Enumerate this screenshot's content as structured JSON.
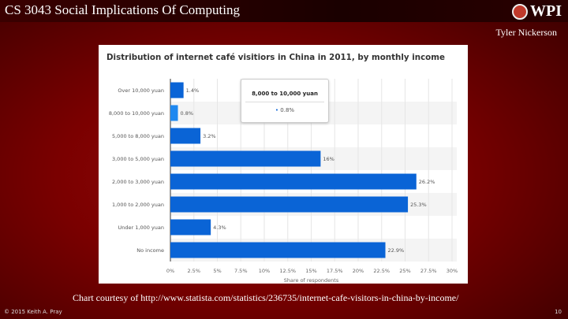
{
  "slide": {
    "title": "CS 3043 Social Implications Of Computing",
    "logo_text": "WPI",
    "author": "Tyler Nickerson",
    "caption": "Chart courtesy of http://www.statista.com/statistics/236735/internet-cafe-visitors-in-china-by-income/",
    "copyright": "© 2015 Keith A. Pray",
    "page_number": "10"
  },
  "tooltip": {
    "title": "8,000 to 10,000 yuan",
    "value": "0.8%",
    "bullet": "•"
  },
  "chart_data": {
    "type": "bar",
    "orientation": "horizontal",
    "title": "Distribution of internet café visitiors in China in 2011, by monthly income",
    "xlabel": "Share of respondents",
    "ylabel": "",
    "categories": [
      "Over 10,000 yuan",
      "8,000 to 10,000 yuan",
      "5,000 to 8,000 yuan",
      "3,000 to 5,000 yuan",
      "2,000 to 3,000 yuan",
      "1,000 to 2,000 yuan",
      "Under 1,000 yuan",
      "No income"
    ],
    "values": [
      1.4,
      0.8,
      3.2,
      16,
      26.2,
      25.3,
      4.3,
      22.9
    ],
    "value_labels": [
      "1.4%",
      "0.8%",
      "3.2%",
      "16%",
      "26.2%",
      "25.3%",
      "4.3%",
      "22.9%"
    ],
    "xlim": [
      0,
      30
    ],
    "x_ticks": [
      "0%",
      "2.5%",
      "5%",
      "7.5%",
      "10%",
      "12.5%",
      "15%",
      "17.5%",
      "20%",
      "22.5%",
      "25%",
      "27.5%",
      "30%"
    ],
    "grid": true,
    "bar_color": "#0a64d6",
    "highlight_color": "#1e88f0",
    "highlighted": "8,000 to 10,000 yuan"
  }
}
